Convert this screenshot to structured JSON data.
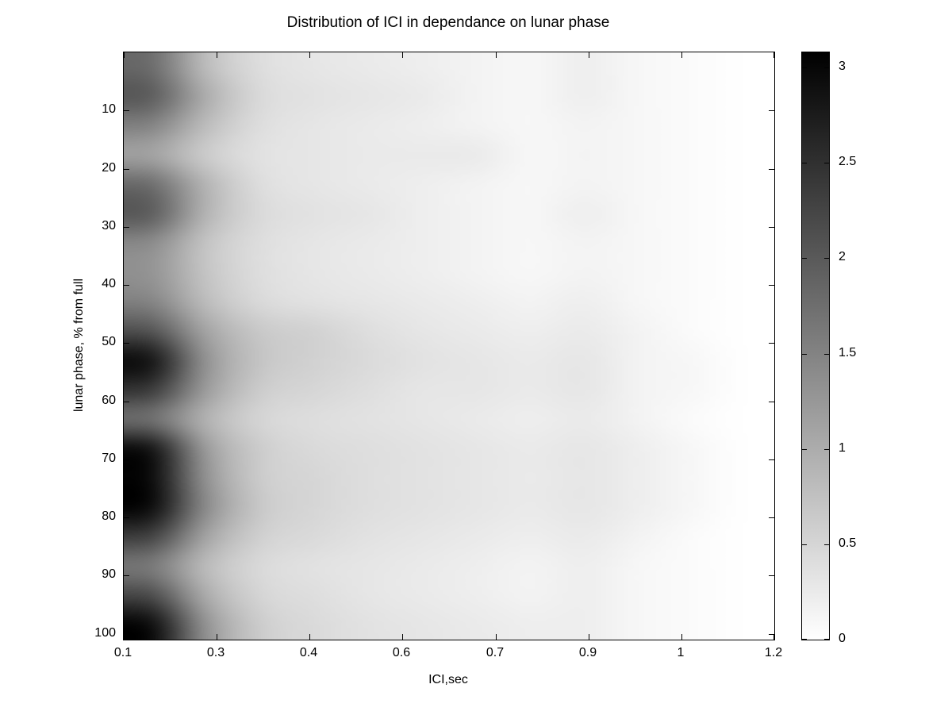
{
  "chart_data": {
    "type": "heatmap",
    "title": "Distribution of ICI in dependance on lunar phase",
    "xlabel": "ICI,sec",
    "ylabel": "lunar phase, % from full",
    "xlim": [
      0.1,
      1.2
    ],
    "ylim": [
      0,
      101
    ],
    "y_axis_direction": "reversed-downward",
    "grid": false,
    "colormap": "gray (0 = white, max = black)",
    "x_tick_labels": [
      "0.1",
      "0.3",
      "0.4",
      "0.6",
      "0.7",
      "0.9",
      "1",
      "1.2"
    ],
    "y_ticks": [
      10,
      20,
      30,
      40,
      50,
      60,
      70,
      80,
      90,
      100
    ],
    "y_tick_labels": [
      "10",
      "20",
      "30",
      "40",
      "50",
      "60",
      "70",
      "80",
      "90",
      "100"
    ],
    "x": [
      0.1,
      0.2,
      0.3,
      0.4,
      0.5,
      0.6,
      0.7,
      0.8,
      0.9,
      1.0,
      1.1,
      1.2
    ],
    "y": [
      5,
      10,
      15,
      20,
      25,
      30,
      35,
      40,
      45,
      50,
      55,
      60,
      65,
      70,
      75,
      80,
      85,
      90,
      95,
      100
    ],
    "values": [
      [
        1.8,
        0.8,
        0.4,
        0.3,
        0.25,
        0.2,
        0.15,
        0.1,
        0.2,
        0.1,
        0.05,
        0.0
      ],
      [
        2.0,
        1.0,
        0.45,
        0.35,
        0.3,
        0.25,
        0.15,
        0.1,
        0.2,
        0.1,
        0.05,
        0.0
      ],
      [
        1.5,
        0.8,
        0.4,
        0.3,
        0.25,
        0.2,
        0.15,
        0.1,
        0.15,
        0.1,
        0.05,
        0.0
      ],
      [
        1.1,
        0.6,
        0.35,
        0.3,
        0.25,
        0.25,
        0.25,
        0.1,
        0.15,
        0.1,
        0.05,
        0.0
      ],
      [
        1.8,
        0.9,
        0.4,
        0.3,
        0.25,
        0.2,
        0.15,
        0.1,
        0.15,
        0.1,
        0.05,
        0.0
      ],
      [
        2.0,
        0.9,
        0.45,
        0.35,
        0.3,
        0.2,
        0.15,
        0.1,
        0.2,
        0.1,
        0.05,
        0.0
      ],
      [
        1.4,
        0.7,
        0.4,
        0.3,
        0.25,
        0.2,
        0.15,
        0.1,
        0.15,
        0.1,
        0.05,
        0.0
      ],
      [
        1.3,
        0.7,
        0.4,
        0.3,
        0.25,
        0.2,
        0.15,
        0.1,
        0.15,
        0.1,
        0.05,
        0.0
      ],
      [
        1.5,
        0.8,
        0.45,
        0.35,
        0.3,
        0.25,
        0.2,
        0.15,
        0.2,
        0.1,
        0.05,
        0.0
      ],
      [
        2.1,
        1.1,
        0.65,
        0.55,
        0.4,
        0.3,
        0.25,
        0.2,
        0.25,
        0.15,
        0.05,
        0.0
      ],
      [
        2.9,
        1.3,
        0.7,
        0.55,
        0.45,
        0.35,
        0.3,
        0.25,
        0.3,
        0.15,
        0.1,
        0.0
      ],
      [
        2.4,
        1.2,
        0.6,
        0.5,
        0.4,
        0.3,
        0.3,
        0.25,
        0.3,
        0.15,
        0.1,
        0.0
      ],
      [
        1.7,
        0.9,
        0.5,
        0.4,
        0.35,
        0.3,
        0.25,
        0.2,
        0.25,
        0.15,
        0.05,
        0.0
      ],
      [
        2.9,
        1.2,
        0.6,
        0.45,
        0.4,
        0.35,
        0.3,
        0.25,
        0.3,
        0.2,
        0.1,
        0.0
      ],
      [
        3.0,
        1.3,
        0.6,
        0.5,
        0.4,
        0.35,
        0.3,
        0.25,
        0.3,
        0.2,
        0.1,
        0.0
      ],
      [
        3.0,
        1.4,
        0.65,
        0.5,
        0.4,
        0.35,
        0.3,
        0.25,
        0.3,
        0.2,
        0.1,
        0.0
      ],
      [
        2.3,
        1.1,
        0.55,
        0.45,
        0.35,
        0.3,
        0.25,
        0.2,
        0.25,
        0.15,
        0.05,
        0.0
      ],
      [
        1.6,
        0.8,
        0.45,
        0.35,
        0.3,
        0.25,
        0.2,
        0.15,
        0.2,
        0.1,
        0.05,
        0.0
      ],
      [
        2.2,
        1.0,
        0.5,
        0.4,
        0.3,
        0.25,
        0.2,
        0.15,
        0.2,
        0.1,
        0.05,
        0.0
      ],
      [
        3.0,
        1.3,
        0.6,
        0.45,
        0.35,
        0.3,
        0.25,
        0.2,
        0.2,
        0.1,
        0.05,
        0.0
      ]
    ],
    "colorbar": {
      "min": 0,
      "max": 3.08,
      "ticks": [
        0,
        0.5,
        1,
        1.5,
        2,
        2.5,
        3
      ],
      "tick_labels": [
        "0",
        "0.5",
        "1",
        "1.5",
        "2",
        "2.5",
        "3"
      ],
      "position": "right"
    },
    "legend": "none"
  }
}
